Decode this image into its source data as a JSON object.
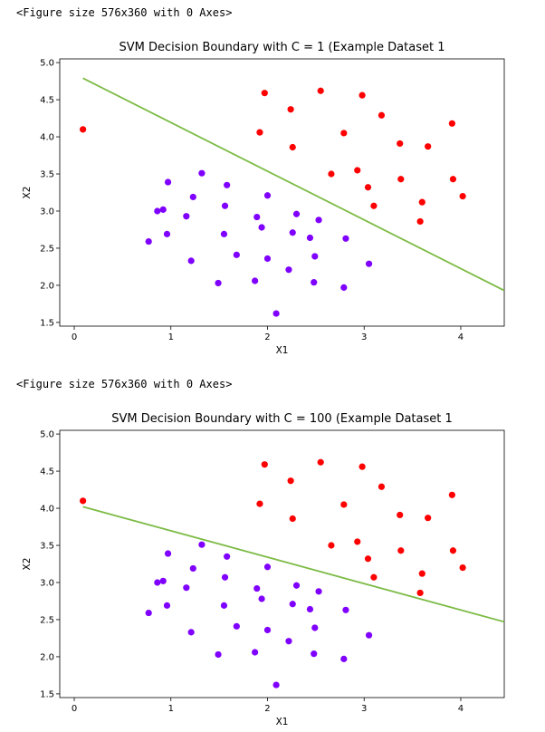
{
  "outputs": [
    {
      "text": "<Figure size 576x360 with 0 Axes>"
    },
    {
      "text": "<Figure size 576x360 with 0 Axes>"
    }
  ],
  "colors": {
    "class0": "#7f00ff",
    "class1": "#ff0000",
    "line": "#7cbb45"
  },
  "chart_data": [
    {
      "type": "scatter",
      "title": "SVM Decision Boundary with C = 1 (Example Dataset 1",
      "xlabel": "X1",
      "ylabel": "X2",
      "xlim": [
        -0.15,
        4.45
      ],
      "ylim": [
        1.45,
        5.05
      ],
      "xticks": [
        "0",
        "1",
        "2",
        "3",
        "4"
      ],
      "xtick_values": [
        0,
        1,
        2,
        3,
        4
      ],
      "yticks": [
        "1.5",
        "2.0",
        "2.5",
        "3.0",
        "3.5",
        "4.0",
        "4.5",
        "5.0"
      ],
      "ytick_values": [
        1.5,
        2.0,
        2.5,
        3.0,
        3.5,
        4.0,
        4.5,
        5.0
      ],
      "series": [
        {
          "points": [
            [
              0.77,
              2.59
            ],
            [
              0.86,
              3.0
            ],
            [
              0.92,
              3.02
            ],
            [
              0.96,
              2.69
            ],
            [
              0.97,
              3.39
            ],
            [
              1.16,
              2.93
            ],
            [
              1.21,
              2.33
            ],
            [
              1.23,
              3.19
            ],
            [
              1.32,
              3.51
            ],
            [
              1.49,
              2.03
            ],
            [
              1.55,
              2.69
            ],
            [
              1.56,
              3.07
            ],
            [
              1.58,
              3.35
            ],
            [
              1.68,
              2.41
            ],
            [
              1.87,
              2.06
            ],
            [
              1.89,
              2.92
            ],
            [
              1.94,
              2.78
            ],
            [
              2.0,
              2.36
            ],
            [
              2.0,
              3.21
            ],
            [
              2.09,
              1.62
            ],
            [
              2.22,
              2.21
            ],
            [
              2.26,
              2.71
            ],
            [
              2.3,
              2.96
            ],
            [
              2.44,
              2.64
            ],
            [
              2.48,
              2.04
            ],
            [
              2.49,
              2.39
            ],
            [
              2.53,
              2.88
            ],
            [
              2.81,
              2.63
            ],
            [
              2.79,
              1.97
            ],
            [
              3.05,
              2.29
            ]
          ]
        },
        {
          "points": [
            [
              0.09,
              4.1
            ],
            [
              1.92,
              4.06
            ],
            [
              1.97,
              4.59
            ],
            [
              2.24,
              4.37
            ],
            [
              2.26,
              3.86
            ],
            [
              2.55,
              4.62
            ],
            [
              2.66,
              3.5
            ],
            [
              2.79,
              4.05
            ],
            [
              2.93,
              3.55
            ],
            [
              2.98,
              4.56
            ],
            [
              3.04,
              3.32
            ],
            [
              3.1,
              3.07
            ],
            [
              3.18,
              4.29
            ],
            [
              3.37,
              3.91
            ],
            [
              3.38,
              3.43
            ],
            [
              3.58,
              2.86
            ],
            [
              3.6,
              3.12
            ],
            [
              3.66,
              3.87
            ],
            [
              3.91,
              4.18
            ],
            [
              3.92,
              3.43
            ],
            [
              4.02,
              3.2
            ]
          ]
        }
      ],
      "boundary": [
        [
          0.09,
          4.79
        ],
        [
          4.45,
          1.93
        ]
      ]
    },
    {
      "type": "scatter",
      "title": "SVM Decision Boundary with C = 100 (Example Dataset 1",
      "xlabel": "X1",
      "ylabel": "X2",
      "xlim": [
        -0.15,
        4.45
      ],
      "ylim": [
        1.45,
        5.05
      ],
      "xticks": [
        "0",
        "1",
        "2",
        "3",
        "4"
      ],
      "xtick_values": [
        0,
        1,
        2,
        3,
        4
      ],
      "yticks": [
        "1.5",
        "2.0",
        "2.5",
        "3.0",
        "3.5",
        "4.0",
        "4.5",
        "5.0"
      ],
      "ytick_values": [
        1.5,
        2.0,
        2.5,
        3.0,
        3.5,
        4.0,
        4.5,
        5.0
      ],
      "series": [
        {
          "points": [
            [
              0.77,
              2.59
            ],
            [
              0.86,
              3.0
            ],
            [
              0.92,
              3.02
            ],
            [
              0.96,
              2.69
            ],
            [
              0.97,
              3.39
            ],
            [
              1.16,
              2.93
            ],
            [
              1.21,
              2.33
            ],
            [
              1.23,
              3.19
            ],
            [
              1.32,
              3.51
            ],
            [
              1.49,
              2.03
            ],
            [
              1.55,
              2.69
            ],
            [
              1.56,
              3.07
            ],
            [
              1.58,
              3.35
            ],
            [
              1.68,
              2.41
            ],
            [
              1.87,
              2.06
            ],
            [
              1.89,
              2.92
            ],
            [
              1.94,
              2.78
            ],
            [
              2.0,
              2.36
            ],
            [
              2.0,
              3.21
            ],
            [
              2.09,
              1.62
            ],
            [
              2.22,
              2.21
            ],
            [
              2.26,
              2.71
            ],
            [
              2.3,
              2.96
            ],
            [
              2.44,
              2.64
            ],
            [
              2.48,
              2.04
            ],
            [
              2.49,
              2.39
            ],
            [
              2.53,
              2.88
            ],
            [
              2.81,
              2.63
            ],
            [
              2.79,
              1.97
            ],
            [
              3.05,
              2.29
            ]
          ]
        },
        {
          "points": [
            [
              0.09,
              4.1
            ],
            [
              1.92,
              4.06
            ],
            [
              1.97,
              4.59
            ],
            [
              2.24,
              4.37
            ],
            [
              2.26,
              3.86
            ],
            [
              2.55,
              4.62
            ],
            [
              2.66,
              3.5
            ],
            [
              2.79,
              4.05
            ],
            [
              2.93,
              3.55
            ],
            [
              2.98,
              4.56
            ],
            [
              3.04,
              3.32
            ],
            [
              3.1,
              3.07
            ],
            [
              3.18,
              4.29
            ],
            [
              3.37,
              3.91
            ],
            [
              3.38,
              3.43
            ],
            [
              3.58,
              2.86
            ],
            [
              3.6,
              3.12
            ],
            [
              3.66,
              3.87
            ],
            [
              3.91,
              4.18
            ],
            [
              3.92,
              3.43
            ],
            [
              4.02,
              3.2
            ]
          ]
        }
      ],
      "boundary": [
        [
          0.09,
          4.02
        ],
        [
          4.45,
          2.47
        ]
      ]
    }
  ]
}
